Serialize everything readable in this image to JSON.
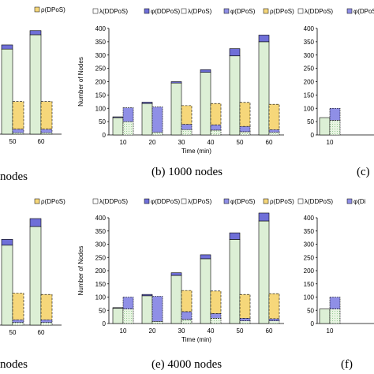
{
  "colors": {
    "lambda_ddpos": "#dcefd5",
    "phi_ddpos": "#6f6fd8",
    "lambda_dpos": "#ffffff",
    "phi_dpos": "#8f8fe6",
    "rho_dpos": "#f6d77a",
    "hatch": "#7fbf7f"
  },
  "chart_data": [
    {
      "type": "bar",
      "caption": "nodes",
      "title": "",
      "ylabel": "",
      "xlabel": "",
      "categories": [
        "50",
        "60"
      ],
      "legend": [
        "",
        "ρ(DPoS)"
      ],
      "series": [
        {
          "name": "λ(DDPoS)",
          "values": [
            308,
            360
          ]
        },
        {
          "name": "φ(DDPoS)",
          "values": [
            15,
            15
          ]
        },
        {
          "name": "λ(DPoS)",
          "values": [
            5,
            5
          ]
        },
        {
          "name": "φ(DPoS)",
          "values": [
            13,
            13
          ]
        },
        {
          "name": "ρ(DPoS)",
          "values": [
            100,
            100
          ]
        }
      ],
      "ylim": [
        0,
        400
      ]
    },
    {
      "type": "bar",
      "caption": "(b) 1000 nodes",
      "title": "",
      "ylabel": "Number of Nodes",
      "xlabel": "Time (min)",
      "categories": [
        "10",
        "20",
        "30",
        "40",
        "50",
        "60"
      ],
      "legend": [
        "λ(DDPoS)",
        "φ(DDPoS)",
        "λ(DPoS)",
        "φ(DPoS)",
        "ρ(DPoS)"
      ],
      "yticks": [
        "0",
        "50",
        "100",
        "150",
        "200",
        "250",
        "300",
        "350",
        "400"
      ],
      "series": [
        {
          "name": "λ(DDPoS)",
          "values": [
            65,
            118,
            195,
            235,
            297,
            350
          ]
        },
        {
          "name": "φ(DDPoS)",
          "values": [
            3,
            5,
            5,
            10,
            27,
            25
          ]
        },
        {
          "name": "λ(DPoS)",
          "values": [
            50,
            10,
            20,
            18,
            12,
            10
          ]
        },
        {
          "name": "φ(DPoS)",
          "values": [
            52,
            95,
            20,
            20,
            20,
            10
          ]
        },
        {
          "name": "ρ(DPoS)",
          "values": [
            0,
            0,
            70,
            80,
            90,
            95
          ]
        }
      ],
      "ylim": [
        0,
        400
      ]
    },
    {
      "type": "bar",
      "caption": "(c)",
      "title": "",
      "ylabel": "",
      "xlabel": "",
      "categories": [
        "10"
      ],
      "legend": [
        "λ(DDPoS)",
        "φ(DPoS)"
      ],
      "yticks": [
        "0",
        "50",
        "100",
        "150",
        "200",
        "250",
        "300",
        "350",
        "400"
      ],
      "series": [
        {
          "name": "λ(DDPoS)",
          "values": [
            65
          ]
        },
        {
          "name": "φ(DDPoS)",
          "values": [
            0
          ]
        },
        {
          "name": "λ(DPoS)",
          "values": [
            55
          ]
        },
        {
          "name": "φ(DPoS)",
          "values": [
            45
          ]
        },
        {
          "name": "ρ(DPoS)",
          "values": [
            0
          ]
        }
      ],
      "ylim": [
        0,
        400
      ]
    },
    {
      "type": "bar",
      "caption": "nodes",
      "title": "",
      "ylabel": "",
      "xlabel": "",
      "categories": [
        "50",
        "60"
      ],
      "legend": [
        "",
        "ρ(DPoS)"
      ],
      "series": [
        {
          "name": "λ(DDPoS)",
          "values": [
            300,
            370
          ]
        },
        {
          "name": "φ(DDPoS)",
          "values": [
            22,
            30
          ]
        },
        {
          "name": "λ(DPoS)",
          "values": [
            10,
            10
          ]
        },
        {
          "name": "φ(DPoS)",
          "values": [
            10,
            10
          ]
        },
        {
          "name": "ρ(DPoS)",
          "values": [
            100,
            95
          ]
        }
      ],
      "ylim": [
        0,
        400
      ]
    },
    {
      "type": "bar",
      "caption": "(e) 4000 nodes",
      "title": "",
      "ylabel": "Number of Nodes",
      "xlabel": "Time (min)",
      "categories": [
        "10",
        "20",
        "30",
        "40",
        "50",
        "60"
      ],
      "legend": [
        "λ(DDPoS)",
        "φ(DDPoS)",
        "λ(DPoS)",
        "φ(DPoS)",
        "ρ(DPoS)"
      ],
      "yticks": [
        "0",
        "50",
        "100",
        "150",
        "200",
        "250",
        "300",
        "350",
        "400"
      ],
      "series": [
        {
          "name": "λ(DDPoS)",
          "values": [
            58,
            105,
            182,
            245,
            318,
            388
          ]
        },
        {
          "name": "φ(DDPoS)",
          "values": [
            2,
            5,
            10,
            15,
            25,
            30
          ]
        },
        {
          "name": "λ(DPoS)",
          "values": [
            55,
            8,
            15,
            20,
            10,
            10
          ]
        },
        {
          "name": "φ(DPoS)",
          "values": [
            45,
            95,
            30,
            18,
            10,
            8
          ]
        },
        {
          "name": "ρ(DPoS)",
          "values": [
            0,
            0,
            80,
            85,
            90,
            95
          ]
        }
      ],
      "ylim": [
        0,
        400
      ]
    },
    {
      "type": "bar",
      "caption": "(f)",
      "title": "",
      "ylabel": "",
      "xlabel": "",
      "categories": [
        "10"
      ],
      "legend": [
        "λ(DDPoS)",
        "φ(Di"
      ],
      "yticks": [
        "0",
        "50",
        "100",
        "150",
        "200",
        "250",
        "300",
        "350",
        "400"
      ],
      "series": [
        {
          "name": "λ(DDPoS)",
          "values": [
            55
          ]
        },
        {
          "name": "φ(DDPoS)",
          "values": [
            0
          ]
        },
        {
          "name": "λ(DPoS)",
          "values": [
            55
          ]
        },
        {
          "name": "φ(DPoS)",
          "values": [
            45
          ]
        },
        {
          "name": "ρ(DPoS)",
          "values": [
            0
          ]
        }
      ],
      "ylim": [
        0,
        400
      ]
    }
  ]
}
